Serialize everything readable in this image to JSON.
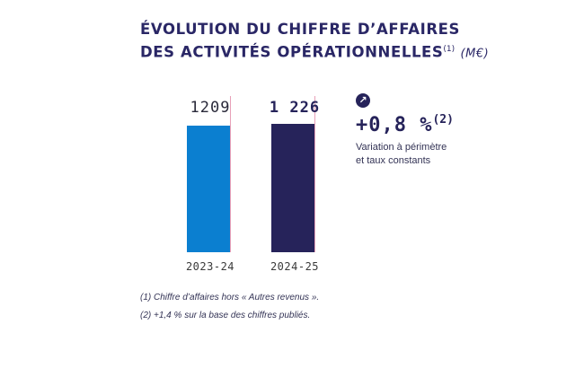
{
  "title": {
    "line1": "ÉVOLUTION DU CHIFFRE D’AFFAIRES",
    "line2": "DES ACTIVITÉS OPÉRATIONNELLES",
    "note": "(1)",
    "unit": "(M€)"
  },
  "colors": {
    "bar_2023_24": "#0b7fd0",
    "bar_2024_25": "#26235a",
    "reference_line": "#e8a0b8",
    "badge": "#26235a"
  },
  "chart_data": {
    "type": "bar",
    "categories": [
      "2023-24",
      "2024-25"
    ],
    "values": [
      1209,
      1226
    ],
    "data_labels": [
      "1209",
      "1 226"
    ],
    "unit": "M€"
  },
  "variation": {
    "icon": "arrow-up-right-icon",
    "value": "+0,8 %",
    "note": "(2)",
    "caption_line1": "Variation à périmètre",
    "caption_line2": "et taux constants"
  },
  "footnotes": [
    "(1)   Chiffre d’affaires hors « Autres revenus ».",
    "(2)   +1,4 % sur la base des chiffres publiés."
  ]
}
